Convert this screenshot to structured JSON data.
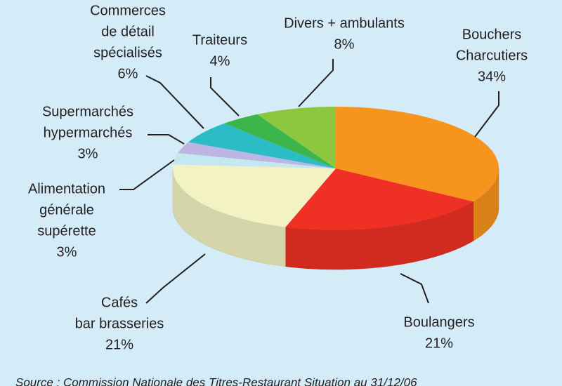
{
  "chart_data": {
    "type": "pie3d",
    "categories": [
      [
        "Bouchers",
        "Charcutiers"
      ],
      [
        "Boulangers"
      ],
      [
        "Cafés",
        "bar brasseries"
      ],
      [
        "Alimentation",
        "générale",
        "supérette"
      ],
      [
        "Supermarchés",
        "hypermarchés"
      ],
      [
        "Commerces",
        "de détail",
        "spécialisés"
      ],
      [
        "Traiteurs"
      ],
      [
        "Divers + ambulants"
      ]
    ],
    "values": [
      34,
      21,
      21,
      3,
      3,
      6,
      4,
      8
    ],
    "value_labels": [
      "34%",
      "21%",
      "21%",
      "3%",
      "3%",
      "6%",
      "4%",
      "8%"
    ],
    "colors": [
      "#f7941d",
      "#ee3124",
      "#f2f2c4",
      "#c4e8ef",
      "#bdb6e2",
      "#2bbcc6",
      "#3cb54a",
      "#8dc63f"
    ],
    "source": "Source : Commission Nationale des Titres-Restaurant Situation au 31/12/06"
  }
}
